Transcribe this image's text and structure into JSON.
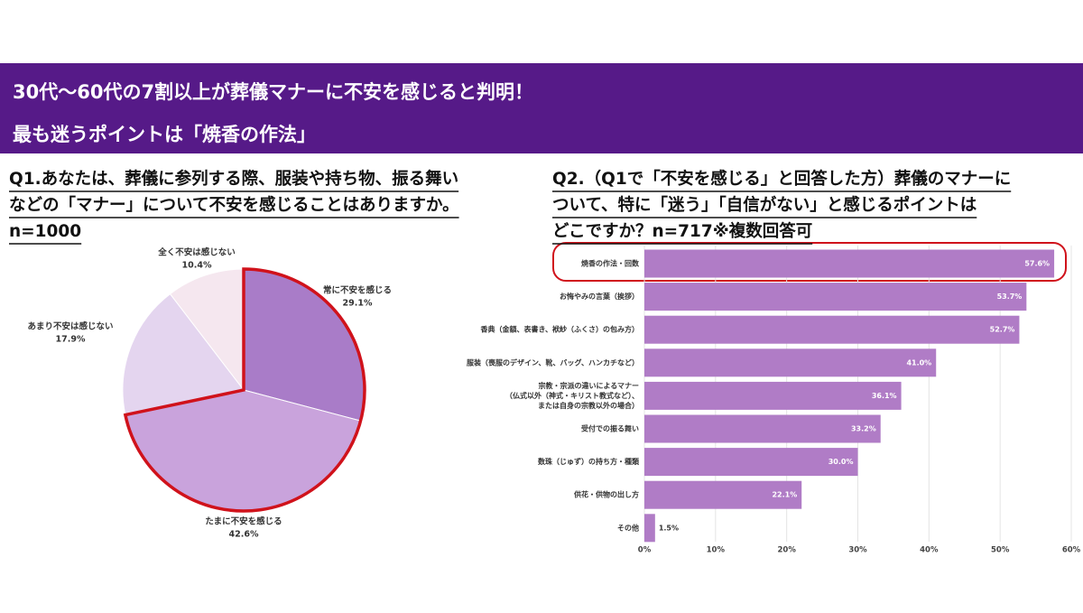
{
  "header": {
    "lines": [
      "30代〜60代の7割以上が葬儀マナーに不安を感じると判明！",
      "最も迷うポイントは「焼香の作法」"
    ]
  },
  "chart_data": [
    {
      "type": "pie",
      "title": [
        "Q1.あなたは、葬儀に参列する際、服装や持ち物、振る舞い",
        "などの「マナー」について不安を感じることはありますか。",
        "n=1000"
      ],
      "categories": [
        "常に不安を感じる",
        "たまに不安を感じる",
        "あまり不安は感じない",
        "全く不安は感じない"
      ],
      "values": [
        29.1,
        42.6,
        17.9,
        10.4
      ],
      "value_labels": [
        "29.1%",
        "42.6%",
        "17.9%",
        "10.4%"
      ],
      "colors": [
        "#a97cc8",
        "#c9a3dc",
        "#e4d5ef",
        "#f5e7ef"
      ]
    },
    {
      "type": "bar",
      "title": [
        "Q2.（Q1で「不安を感じる」と回答した方）葬儀のマナーに",
        "ついて、特に「迷う」「自信がない」と感じるポイントは",
        "どこですか？n=717※複数回答可"
      ],
      "categories": [
        [
          "焼香の作法・回数"
        ],
        [
          "お悔やみの言葉（挨拶）"
        ],
        [
          "香典（金額、表書き、袱紗（ふくさ）の包み方）"
        ],
        [
          "服装（喪服のデザイン、靴、バッグ、ハンカチなど）"
        ],
        [
          "宗教・宗派の違いによるマナー",
          "（仏式以外（神式・キリスト教式など）、",
          "または自身の宗教以外の場合）"
        ],
        [
          "受付での振る舞い"
        ],
        [
          "数珠（じゅず）の持ち方・種類"
        ],
        [
          "供花・供物の出し方"
        ],
        [
          "その他"
        ]
      ],
      "values": [
        57.6,
        53.7,
        52.7,
        41.0,
        36.1,
        33.2,
        30.0,
        22.1,
        1.5
      ],
      "value_labels": [
        "57.6%",
        "53.7%",
        "52.7%",
        "41.0%",
        "36.1%",
        "33.2%",
        "30.0%",
        "22.1%",
        "1.5%"
      ],
      "color": "#b07cc6",
      "xlim": [
        0,
        60
      ],
      "xticks": [
        {
          "value": 0,
          "label": "0%"
        },
        {
          "value": 10,
          "label": "10%"
        },
        {
          "value": 20,
          "label": "20%"
        },
        {
          "value": 30,
          "label": "30%"
        },
        {
          "value": 40,
          "label": "40%"
        },
        {
          "value": 50,
          "label": "50%"
        },
        {
          "value": 60,
          "label": "60%"
        }
      ],
      "grid": true
    }
  ]
}
